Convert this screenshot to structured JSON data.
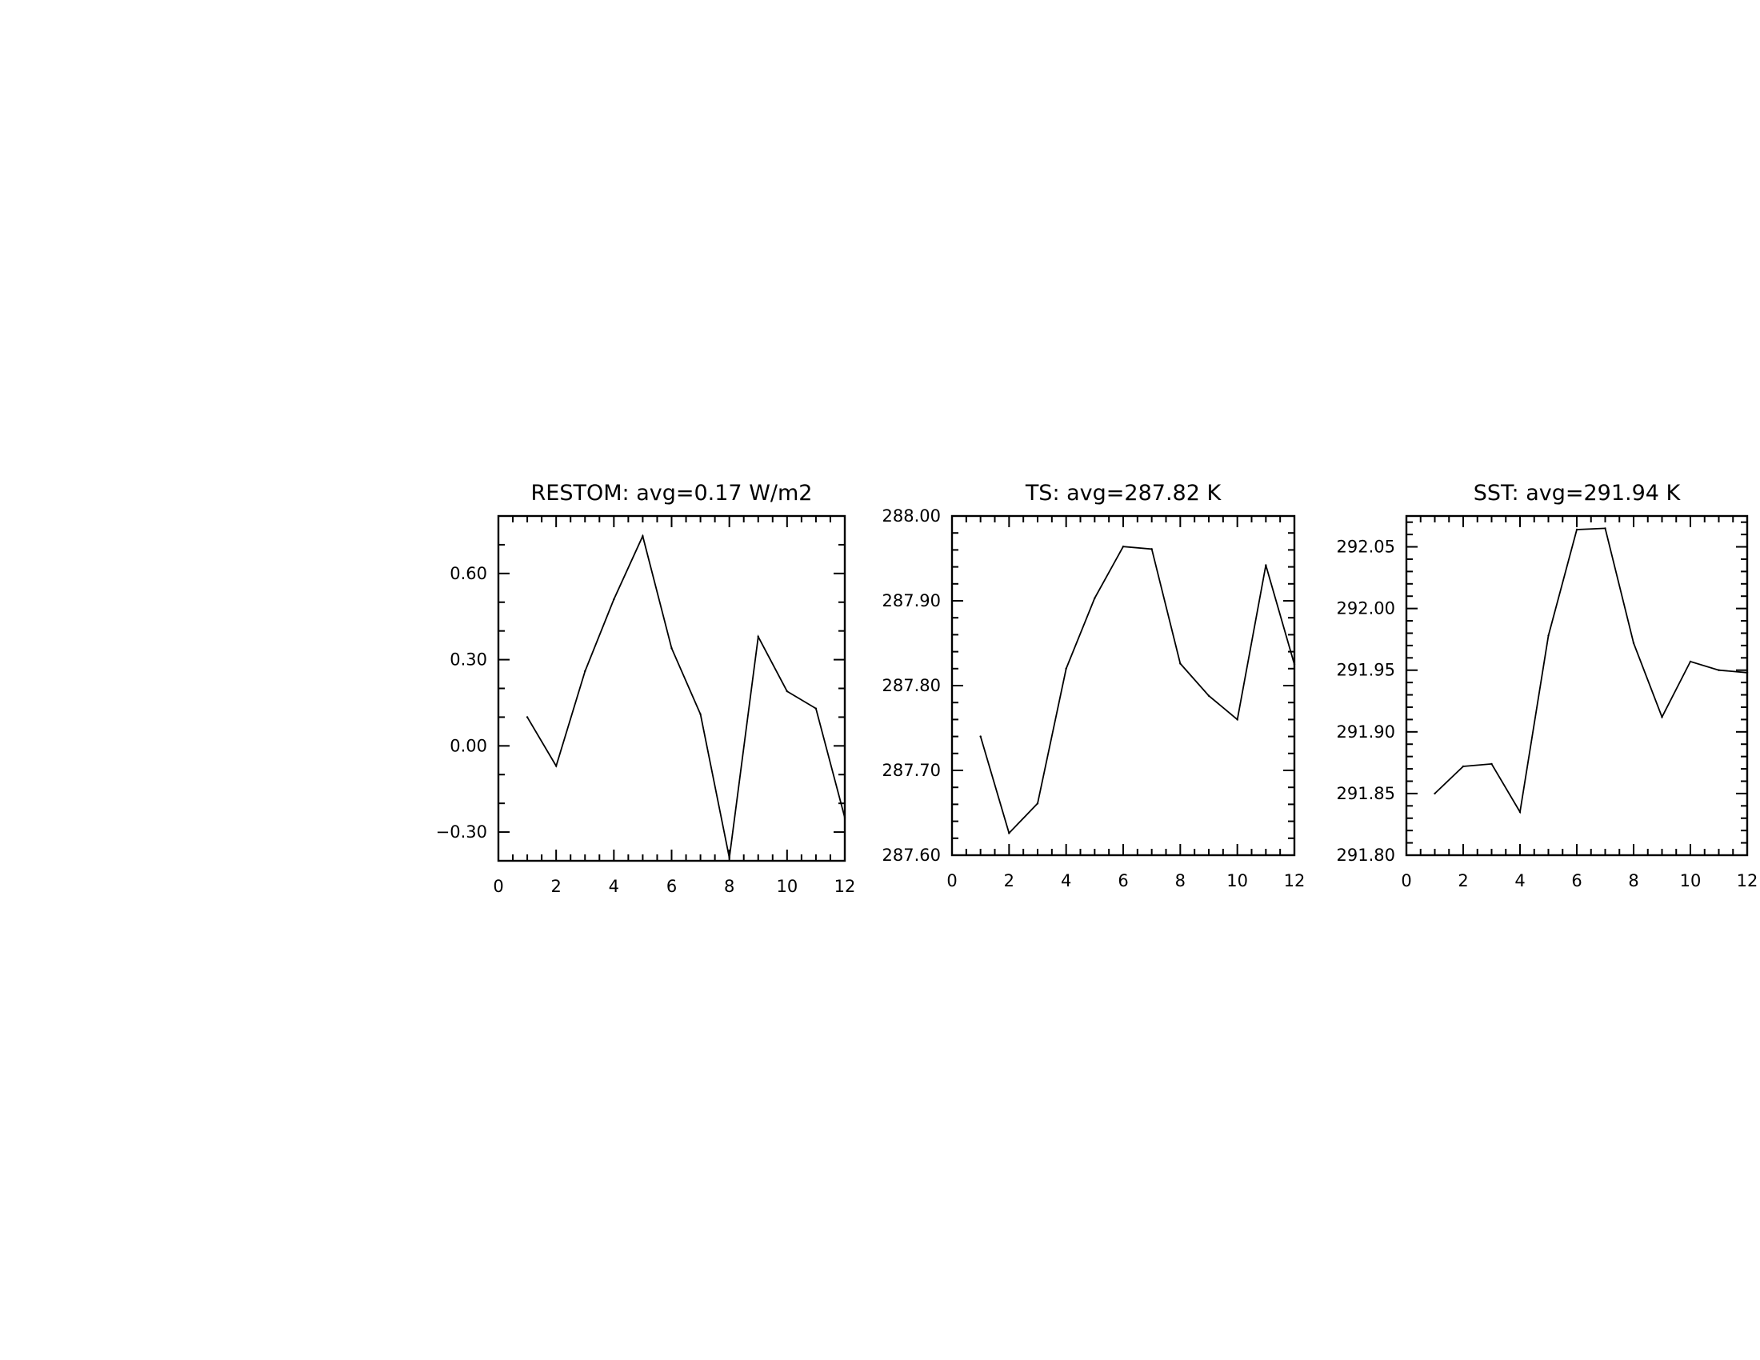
{
  "chart_data": [
    {
      "type": "line",
      "title": "RESTOM: avg=0.17 W/m2",
      "xlim": [
        0,
        12
      ],
      "ylim": [
        -0.4,
        0.8
      ],
      "xticks": [
        0,
        2,
        4,
        6,
        8,
        10,
        12
      ],
      "xtick_labels": [
        "0",
        "2",
        "4",
        "6",
        "8",
        "10",
        "12"
      ],
      "yticks": [
        -0.3,
        0.0,
        0.3,
        0.6
      ],
      "ytick_labels": [
        "−0.30",
        "0.00",
        "0.30",
        "0.60"
      ],
      "x_minor_step": 0.5,
      "y_minor_step": 0.1,
      "grid": false,
      "x": [
        1,
        2,
        3,
        4,
        5,
        6,
        7,
        8,
        9,
        10,
        11,
        12
      ],
      "values": [
        0.1,
        -0.07,
        0.26,
        0.51,
        0.73,
        0.34,
        0.11,
        -0.39,
        0.38,
        0.19,
        0.13,
        -0.25
      ]
    },
    {
      "type": "line",
      "title": "TS: avg=287.82 K",
      "xlim": [
        0,
        12
      ],
      "ylim": [
        287.6,
        288.0
      ],
      "xticks": [
        0,
        2,
        4,
        6,
        8,
        10,
        12
      ],
      "xtick_labels": [
        "0",
        "2",
        "4",
        "6",
        "8",
        "10",
        "12"
      ],
      "yticks": [
        287.6,
        287.7,
        287.8,
        287.9,
        288.0
      ],
      "ytick_labels": [
        "287.60",
        "287.70",
        "287.80",
        "287.90",
        "288.00"
      ],
      "x_minor_step": 0.5,
      "y_minor_step": 0.02,
      "grid": false,
      "x": [
        1,
        2,
        3,
        4,
        5,
        6,
        7,
        8,
        9,
        10,
        11,
        12
      ],
      "values": [
        287.74,
        287.626,
        287.661,
        287.82,
        287.903,
        287.964,
        287.961,
        287.826,
        287.788,
        287.76,
        287.942,
        287.825
      ]
    },
    {
      "type": "line",
      "title": "SST: avg=291.94 K",
      "xlim": [
        0,
        12
      ],
      "ylim": [
        291.8,
        292.075
      ],
      "xticks": [
        0,
        2,
        4,
        6,
        8,
        10,
        12
      ],
      "xtick_labels": [
        "0",
        "2",
        "4",
        "6",
        "8",
        "10",
        "12"
      ],
      "yticks": [
        291.8,
        291.85,
        291.9,
        291.95,
        292.0,
        292.05
      ],
      "ytick_labels": [
        "291.80",
        "291.85",
        "291.90",
        "291.95",
        "292.00",
        "292.05"
      ],
      "x_minor_step": 0.5,
      "y_minor_step": 0.01,
      "grid": false,
      "x": [
        1,
        2,
        3,
        4,
        5,
        6,
        7,
        8,
        9,
        10,
        11,
        12
      ],
      "values": [
        291.85,
        291.872,
        291.874,
        291.835,
        291.978,
        292.064,
        292.065,
        291.972,
        291.912,
        291.957,
        291.95,
        291.948
      ]
    }
  ]
}
